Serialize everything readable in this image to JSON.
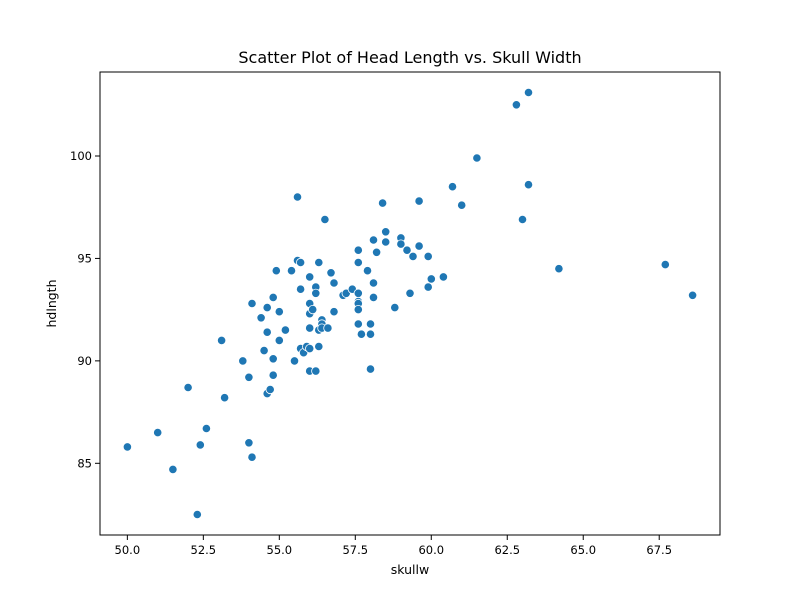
{
  "chart_data": {
    "type": "scatter",
    "title": "Scatter Plot of Head Length vs. Skull Width",
    "xlabel": "skullw",
    "ylabel": "hdlngth",
    "xlim": [
      49.1,
      69.5
    ],
    "ylim": [
      81.5,
      104.1
    ],
    "xticks": [
      50.0,
      52.5,
      55.0,
      57.5,
      60.0,
      62.5,
      65.0,
      67.5
    ],
    "xtick_labels": [
      "50.0",
      "52.5",
      "55.0",
      "57.5",
      "60.0",
      "62.5",
      "65.0",
      "67.5"
    ],
    "yticks": [
      85,
      90,
      95,
      100
    ],
    "ytick_labels": [
      "85",
      "90",
      "95",
      "100"
    ],
    "grid": false,
    "series": [
      {
        "color": "#1f77b4",
        "points": [
          [
            50.0,
            85.8
          ],
          [
            51.0,
            86.5
          ],
          [
            51.5,
            84.7
          ],
          [
            52.0,
            88.7
          ],
          [
            52.3,
            82.5
          ],
          [
            52.4,
            85.9
          ],
          [
            52.6,
            86.7
          ],
          [
            53.1,
            91.0
          ],
          [
            53.2,
            88.2
          ],
          [
            53.8,
            90.0
          ],
          [
            54.0,
            86.0
          ],
          [
            54.0,
            89.2
          ],
          [
            54.1,
            85.3
          ],
          [
            54.1,
            92.8
          ],
          [
            54.4,
            92.1
          ],
          [
            54.5,
            90.5
          ],
          [
            54.6,
            92.6
          ],
          [
            54.6,
            91.4
          ],
          [
            54.6,
            88.4
          ],
          [
            54.7,
            88.6
          ],
          [
            54.8,
            93.1
          ],
          [
            54.8,
            90.1
          ],
          [
            54.8,
            89.3
          ],
          [
            54.9,
            94.4
          ],
          [
            55.0,
            92.4
          ],
          [
            55.0,
            91.0
          ],
          [
            55.2,
            91.5
          ],
          [
            55.4,
            94.4
          ],
          [
            55.5,
            90.0
          ],
          [
            55.6,
            98.0
          ],
          [
            55.6,
            94.9
          ],
          [
            55.7,
            94.8
          ],
          [
            55.7,
            93.5
          ],
          [
            55.7,
            90.6
          ],
          [
            55.8,
            90.4
          ],
          [
            55.9,
            90.7
          ],
          [
            56.0,
            94.1
          ],
          [
            56.0,
            92.8
          ],
          [
            56.0,
            92.3
          ],
          [
            56.0,
            91.6
          ],
          [
            56.0,
            90.6
          ],
          [
            56.0,
            89.5
          ],
          [
            56.1,
            92.5
          ],
          [
            56.2,
            93.6
          ],
          [
            56.2,
            93.3
          ],
          [
            56.2,
            89.5
          ],
          [
            56.3,
            94.8
          ],
          [
            56.3,
            91.5
          ],
          [
            56.3,
            90.7
          ],
          [
            56.4,
            92.0
          ],
          [
            56.4,
            91.8
          ],
          [
            56.4,
            91.6
          ],
          [
            56.5,
            96.9
          ],
          [
            56.6,
            91.6
          ],
          [
            56.7,
            94.3
          ],
          [
            56.8,
            93.8
          ],
          [
            56.8,
            92.4
          ],
          [
            57.1,
            93.2
          ],
          [
            57.2,
            93.3
          ],
          [
            57.4,
            93.5
          ],
          [
            57.6,
            95.4
          ],
          [
            57.6,
            94.8
          ],
          [
            57.6,
            93.3
          ],
          [
            57.6,
            92.9
          ],
          [
            57.6,
            92.8
          ],
          [
            57.6,
            92.5
          ],
          [
            57.6,
            91.8
          ],
          [
            57.7,
            91.3
          ],
          [
            57.9,
            94.4
          ],
          [
            58.0,
            91.8
          ],
          [
            58.0,
            91.3
          ],
          [
            58.0,
            89.6
          ],
          [
            58.1,
            95.9
          ],
          [
            58.1,
            93.8
          ],
          [
            58.1,
            93.1
          ],
          [
            58.2,
            95.3
          ],
          [
            58.4,
            97.7
          ],
          [
            58.5,
            96.3
          ],
          [
            58.5,
            95.8
          ],
          [
            58.8,
            92.6
          ],
          [
            59.0,
            96.0
          ],
          [
            59.0,
            95.7
          ],
          [
            59.2,
            95.4
          ],
          [
            59.3,
            93.3
          ],
          [
            59.4,
            95.1
          ],
          [
            59.6,
            97.8
          ],
          [
            59.6,
            95.6
          ],
          [
            59.9,
            95.1
          ],
          [
            59.9,
            93.6
          ],
          [
            60.0,
            94.0
          ],
          [
            60.4,
            94.1
          ],
          [
            60.7,
            98.5
          ],
          [
            61.0,
            97.6
          ],
          [
            61.5,
            99.9
          ],
          [
            62.8,
            102.5
          ],
          [
            63.0,
            96.9
          ],
          [
            63.2,
            103.1
          ],
          [
            63.2,
            98.6
          ],
          [
            64.2,
            94.5
          ],
          [
            67.7,
            94.7
          ],
          [
            68.6,
            93.2
          ]
        ]
      }
    ]
  }
}
